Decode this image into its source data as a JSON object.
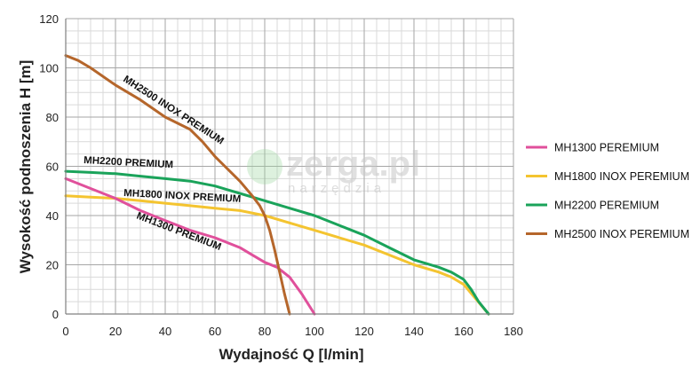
{
  "chart_data": {
    "type": "line",
    "xlabel": "Wydajność Q [l/min]",
    "ylabel": "Wysokość podnoszenia H [m]",
    "xlim": [
      0,
      180
    ],
    "ylim": [
      0,
      120
    ],
    "x_ticks": [
      0,
      20,
      40,
      60,
      80,
      100,
      120,
      140,
      160,
      180
    ],
    "y_ticks": [
      0,
      20,
      40,
      60,
      80,
      100,
      120
    ],
    "x_minor_step": 5,
    "y_minor_step": 5,
    "grid": true,
    "legend_position": "right",
    "watermark": {
      "main": "zerga.pl",
      "sub": "narzędzia"
    },
    "series": [
      {
        "name": "MH1300 PEREMIUM",
        "curve_label": "MH1300 PREMIUM",
        "color": "#e0509b",
        "x": [
          0,
          10,
          20,
          30,
          40,
          50,
          60,
          70,
          75,
          80,
          85,
          90,
          95,
          100
        ],
        "y": [
          55,
          51,
          47,
          42,
          38,
          34,
          31,
          27,
          24,
          21,
          19,
          15,
          8,
          0
        ]
      },
      {
        "name": "MH1800 INOX PEREMIUM",
        "curve_label": "MH1800 INOX PREMIUM",
        "color": "#f4c430",
        "x": [
          0,
          10,
          20,
          30,
          40,
          50,
          60,
          70,
          80,
          90,
          100,
          110,
          120,
          130,
          140,
          150,
          155,
          160,
          165,
          170
        ],
        "y": [
          48,
          47.5,
          47,
          46,
          45,
          44,
          43,
          42,
          40,
          37,
          34,
          31,
          28,
          24,
          20,
          17,
          15,
          12,
          6,
          0
        ]
      },
      {
        "name": "MH2200 PEREMIUM",
        "curve_label": "MH2200 PREMIUM",
        "color": "#1aa35a",
        "x": [
          0,
          10,
          20,
          30,
          40,
          50,
          60,
          70,
          80,
          90,
          100,
          110,
          120,
          130,
          140,
          150,
          155,
          160,
          163,
          166,
          170
        ],
        "y": [
          58,
          57.5,
          57,
          56,
          55,
          54,
          52,
          49,
          46,
          43,
          40,
          36,
          32,
          27,
          22,
          19,
          17,
          14,
          10,
          5,
          0
        ]
      },
      {
        "name": "MH2500 INOX PEREMIUM",
        "curve_label": "MH2500 INOX PREMIUM",
        "color": "#b5662b",
        "x": [
          0,
          5,
          10,
          20,
          30,
          40,
          50,
          55,
          60,
          65,
          70,
          75,
          78,
          80,
          82,
          84,
          86,
          88,
          90
        ],
        "y": [
          105,
          103,
          100,
          93,
          87,
          80,
          75,
          70,
          64,
          59,
          54,
          48,
          44,
          40,
          34,
          26,
          17,
          8,
          0
        ]
      }
    ]
  }
}
